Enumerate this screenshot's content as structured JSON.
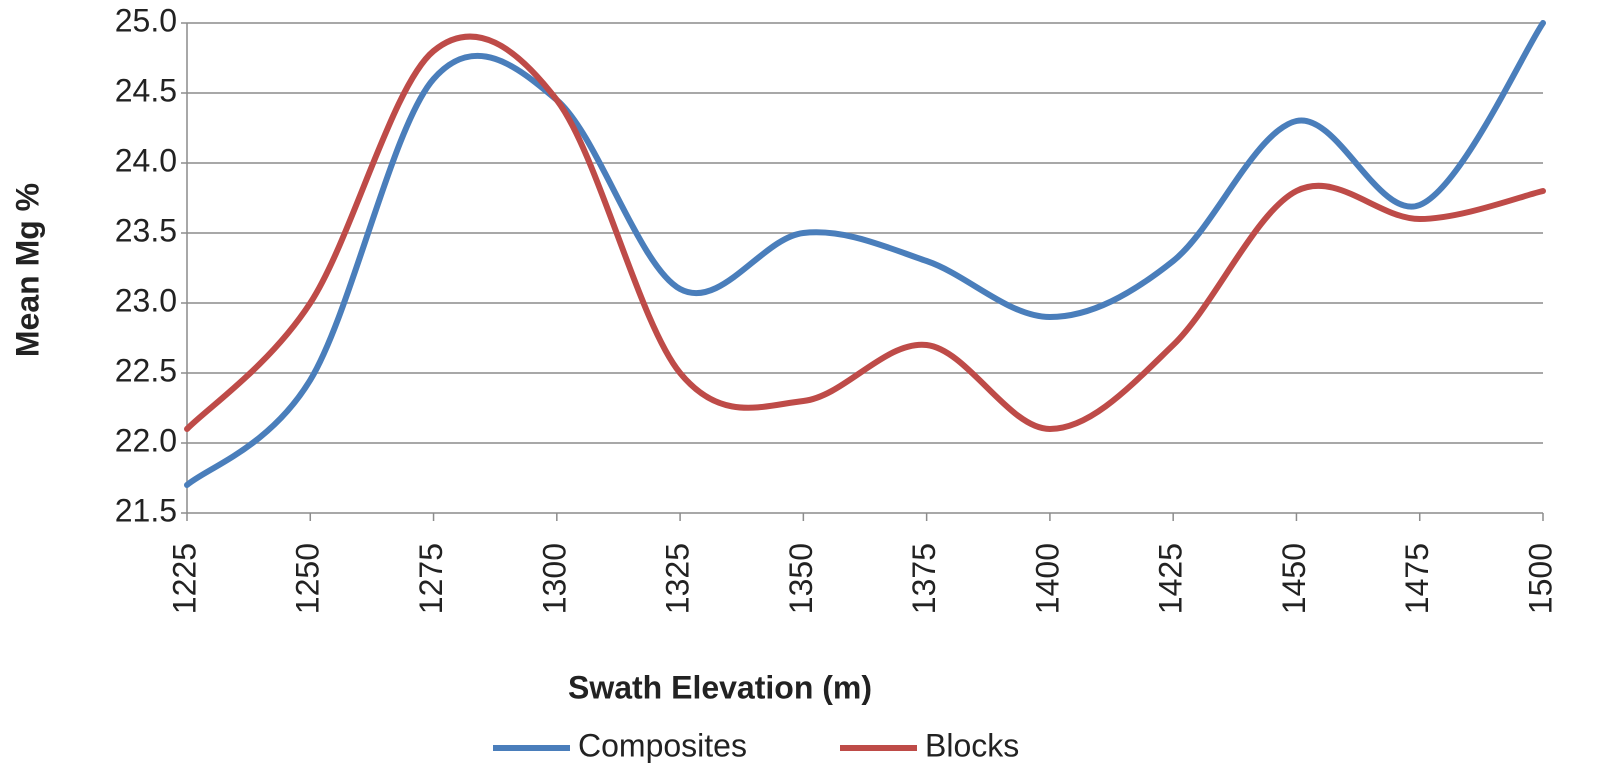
{
  "chart_data": {
    "type": "line",
    "x_label": "Swath Elevation (m)",
    "y_label": "Mean Mg %",
    "x": [
      1225,
      1250,
      1275,
      1300,
      1325,
      1350,
      1375,
      1400,
      1425,
      1450,
      1475,
      1500
    ],
    "series": [
      {
        "name": "Composites",
        "color": "#4a7ebb",
        "values": [
          21.7,
          22.45,
          24.6,
          24.45,
          23.1,
          23.5,
          23.3,
          22.9,
          23.3,
          24.3,
          23.7,
          25.0
        ]
      },
      {
        "name": "Blocks",
        "color": "#be4b48",
        "values": [
          22.1,
          23.0,
          24.8,
          24.45,
          22.5,
          22.3,
          22.7,
          22.1,
          22.7,
          23.8,
          23.6,
          23.8
        ]
      }
    ],
    "xlim": [
      1225,
      1500
    ],
    "xticks": [
      1225,
      1250,
      1275,
      1300,
      1325,
      1350,
      1375,
      1400,
      1425,
      1450,
      1475,
      1500
    ],
    "ylim": [
      21.5,
      25.0
    ],
    "yticks": [
      {
        "value": 21.5,
        "label": "21.5"
      },
      {
        "value": 22.0,
        "label": "22.0"
      },
      {
        "value": 22.5,
        "label": "22.5"
      },
      {
        "value": 23.0,
        "label": "23.0"
      },
      {
        "value": 23.5,
        "label": "23.5"
      },
      {
        "value": 24.0,
        "label": "24.0"
      },
      {
        "value": 24.5,
        "label": "24.5"
      },
      {
        "value": 25.0,
        "label": "25.0"
      }
    ],
    "grid": true,
    "smooth": true,
    "legend": "bottom"
  }
}
